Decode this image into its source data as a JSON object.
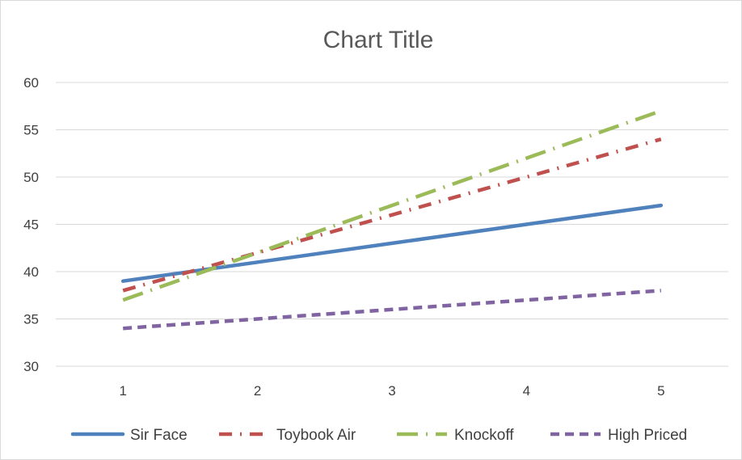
{
  "chart_data": {
    "type": "line",
    "title": "Chart Title",
    "xlabel": "",
    "ylabel": "",
    "x": [
      1,
      2,
      3,
      4,
      5
    ],
    "ylim": [
      30,
      60
    ],
    "yticks": [
      30,
      35,
      40,
      45,
      50,
      55,
      60
    ],
    "grid": true,
    "legend_position": "bottom",
    "series": [
      {
        "name": "Sir Face",
        "values": [
          39,
          41,
          43,
          45,
          47
        ],
        "color": "#4F81BD",
        "dash": "solid"
      },
      {
        "name": "Toybook Air",
        "values": [
          38,
          42,
          46,
          50,
          54
        ],
        "color": "#C0504D",
        "dash": "dash-dot"
      },
      {
        "name": "Knockoff",
        "values": [
          37,
          42,
          47,
          52,
          57
        ],
        "color": "#9BBB59",
        "dash": "long-dash-dot"
      },
      {
        "name": "High Priced",
        "values": [
          34,
          35,
          36,
          37,
          38
        ],
        "color": "#8064A2",
        "dash": "dash"
      }
    ]
  }
}
